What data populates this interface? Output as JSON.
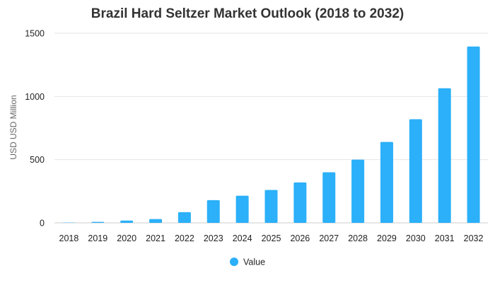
{
  "chart_data": {
    "type": "bar",
    "title": "Brazil Hard Seltzer Market Outlook (2018 to 2032)",
    "xlabel": "",
    "ylabel": "USD USD Million",
    "categories": [
      "2018",
      "2019",
      "2020",
      "2021",
      "2022",
      "2023",
      "2024",
      "2025",
      "2026",
      "2027",
      "2028",
      "2029",
      "2030",
      "2031",
      "2032"
    ],
    "series": [
      {
        "name": "Value",
        "values": [
          2,
          8,
          18,
          30,
          85,
          180,
          215,
          260,
          320,
          400,
          500,
          640,
          820,
          1065,
          1395
        ]
      }
    ],
    "ylim": [
      0,
      1500
    ],
    "yticks": [
      0,
      500,
      1000,
      1500
    ],
    "grid": true,
    "legend": "bottom-center",
    "colors": {
      "bar": "#2bb0f9",
      "grid": "#e6e6e6",
      "title": "#333333"
    }
  }
}
